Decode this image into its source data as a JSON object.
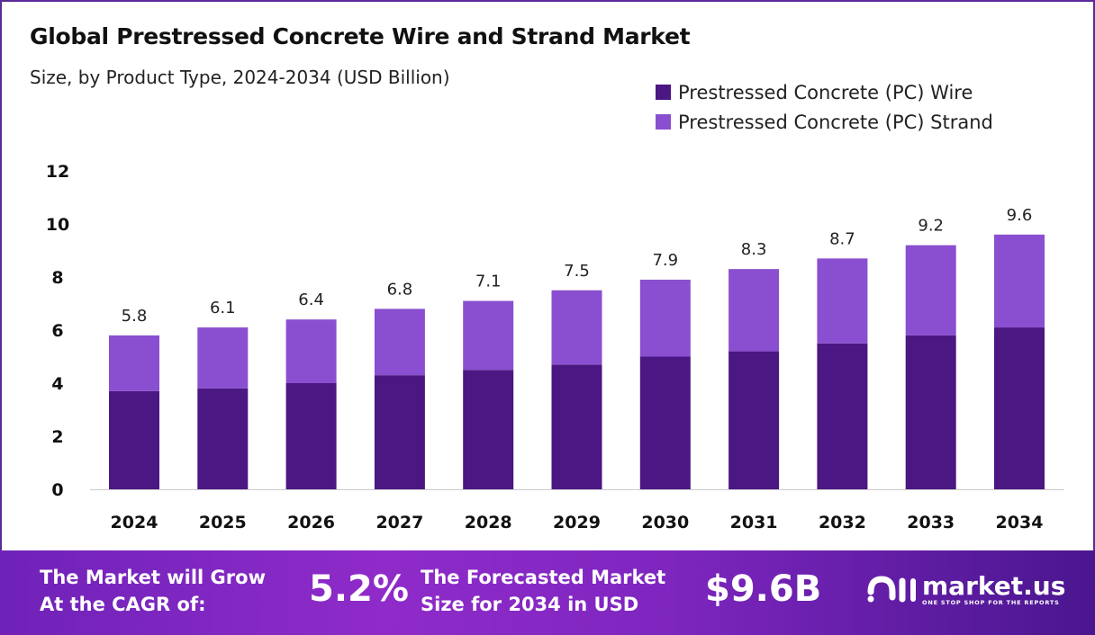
{
  "chart_data": {
    "type": "stacked-bar",
    "title": "Global Prestressed  Concrete Wire and Strand Market",
    "subtitle": "Size, by Product Type, 2024-2034 (USD Billion)",
    "xlabel": "",
    "ylabel": "",
    "ylim": [
      0,
      12
    ],
    "yticks": [
      "0",
      "2",
      "4",
      "6",
      "8",
      "10",
      "12"
    ],
    "grid": false,
    "legend_placement": "top-right",
    "categories": [
      "2024",
      "2025",
      "2026",
      "2027",
      "2028",
      "2029",
      "2030",
      "2031",
      "2032",
      "2033",
      "2034"
    ],
    "series": [
      {
        "name": "Prestressed Concrete (PC) Wire",
        "color": "#4b1782",
        "values": [
          3.7,
          3.8,
          4.0,
          4.3,
          4.5,
          4.7,
          5.0,
          5.2,
          5.5,
          5.8,
          6.1
        ]
      },
      {
        "name": "Prestressed Concrete (PC) Strand",
        "color": "#8a4fd0",
        "values": [
          2.1,
          2.3,
          2.4,
          2.5,
          2.6,
          2.8,
          2.9,
          3.1,
          3.2,
          3.4,
          3.5
        ]
      }
    ],
    "totals": [
      "5.8",
      "6.1",
      "6.4",
      "6.8",
      "7.1",
      "7.5",
      "7.9",
      "8.3",
      "8.7",
      "9.2",
      "9.6"
    ]
  },
  "footer": {
    "cagr_label_1": "The Market will Grow",
    "cagr_label_2": "At the CAGR of:",
    "cagr_value": "5.2%",
    "forecast_label_1": "The Forecasted Market",
    "forecast_label_2": "Size for 2034 in USD",
    "forecast_value": "$9.6B",
    "logo_name": "market.us",
    "logo_tagline": "ONE STOP SHOP FOR THE REPORTS"
  }
}
